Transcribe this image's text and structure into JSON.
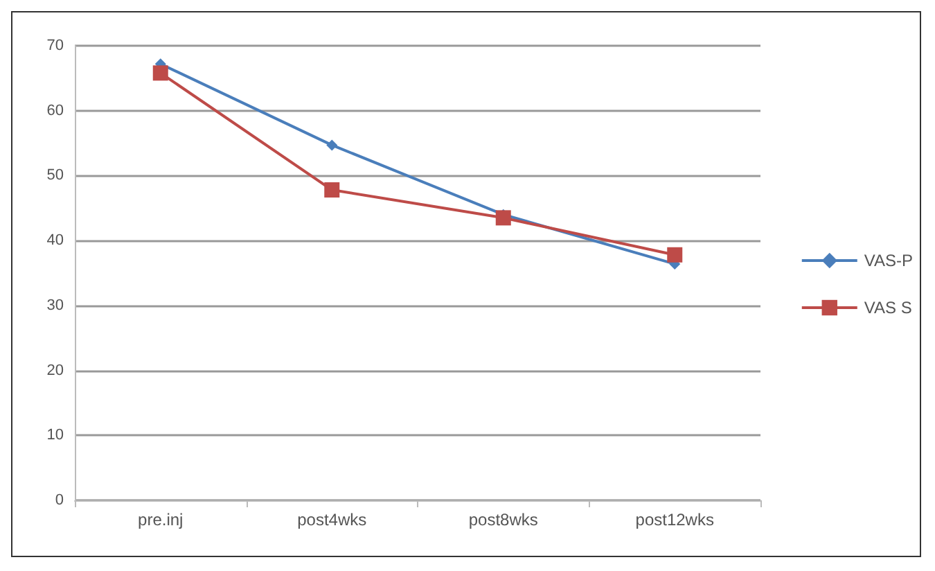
{
  "chart_data": {
    "type": "line",
    "categories": [
      "pre.inj",
      "post4wks",
      "post8wks",
      "post12wks"
    ],
    "series": [
      {
        "name": "VAS-P",
        "color": "#4a7ebb",
        "marker": "diamond",
        "values": [
          67.2,
          54.7,
          44,
          36.4
        ]
      },
      {
        "name": "VAS S",
        "color": "#be4b48",
        "marker": "square",
        "values": [
          65.8,
          47.8,
          43.5,
          37.8
        ]
      }
    ],
    "ylim": [
      0,
      70
    ],
    "yticks": [
      0,
      10,
      20,
      30,
      40,
      50,
      60,
      70
    ],
    "grid": "y",
    "legend": "right"
  }
}
